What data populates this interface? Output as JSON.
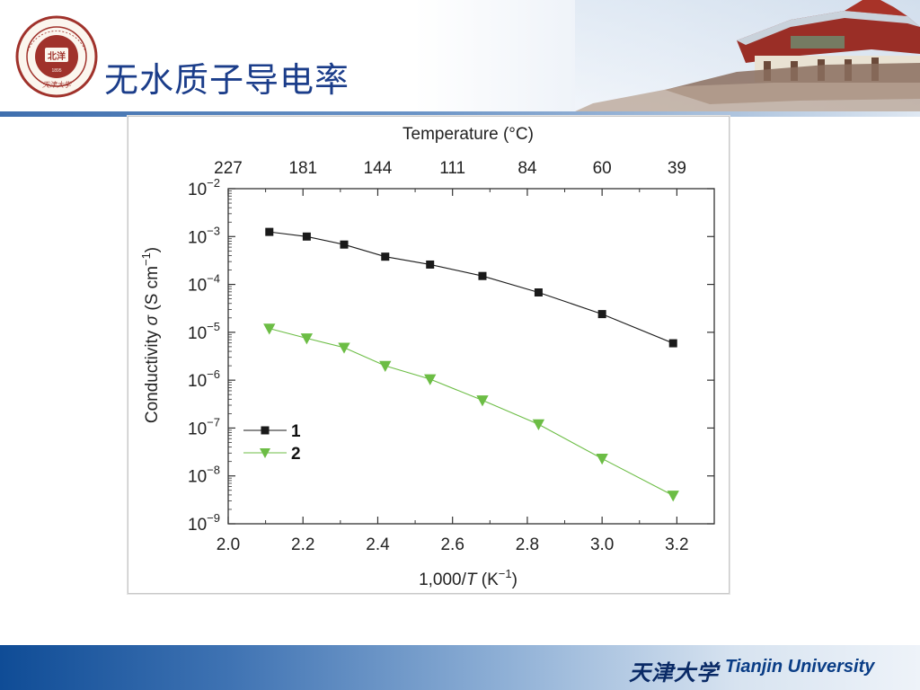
{
  "slide": {
    "title": "无水质子导电率",
    "footer_cn": "天津大学",
    "footer_en": "Tianjin University"
  },
  "chart_data": {
    "type": "scatter",
    "top_axis_label": "Temperature (°C)",
    "top_ticks": [
      "227",
      "181",
      "144",
      "111",
      "84",
      "60",
      "39"
    ],
    "top_tick_x": [
      2.0,
      2.2,
      2.4,
      2.6,
      2.8,
      3.0,
      3.2
    ],
    "xlabel_parts": [
      "1,000/",
      "T",
      " (K",
      "−1",
      ")"
    ],
    "ylabel_parts": [
      "Conductivity ",
      "σ",
      " (S cm",
      "−1",
      ")"
    ],
    "x_ticks": [
      "2.0",
      "2.2",
      "2.4",
      "2.6",
      "2.8",
      "3.0",
      "3.2"
    ],
    "xlim": [
      2.0,
      3.3
    ],
    "y_log": true,
    "ylim_exp": [
      -9,
      -2
    ],
    "y_tick_base": "10",
    "y_tick_exps": [
      "−2",
      "−3",
      "−4",
      "−5",
      "−6",
      "−7",
      "−8",
      "−9"
    ],
    "legend_position": "lower-left",
    "series": [
      {
        "name": "1",
        "marker": "square",
        "color": "#1a1a1a",
        "x": [
          2.11,
          2.21,
          2.31,
          2.42,
          2.54,
          2.68,
          2.83,
          3.0,
          3.19
        ],
        "y": [
          0.00125,
          0.001,
          0.00068,
          0.00038,
          0.00026,
          0.00015,
          6.8e-05,
          2.4e-05,
          5.9e-06
        ]
      },
      {
        "name": "2",
        "marker": "triangle-down",
        "color": "#6cbd45",
        "x": [
          2.11,
          2.21,
          2.31,
          2.42,
          2.54,
          2.68,
          2.83,
          3.0,
          3.19
        ],
        "y": [
          1.2e-05,
          7.5e-06,
          4.8e-06,
          2e-06,
          1.05e-06,
          3.8e-07,
          1.2e-07,
          2.3e-08,
          3.9e-09
        ]
      }
    ]
  }
}
